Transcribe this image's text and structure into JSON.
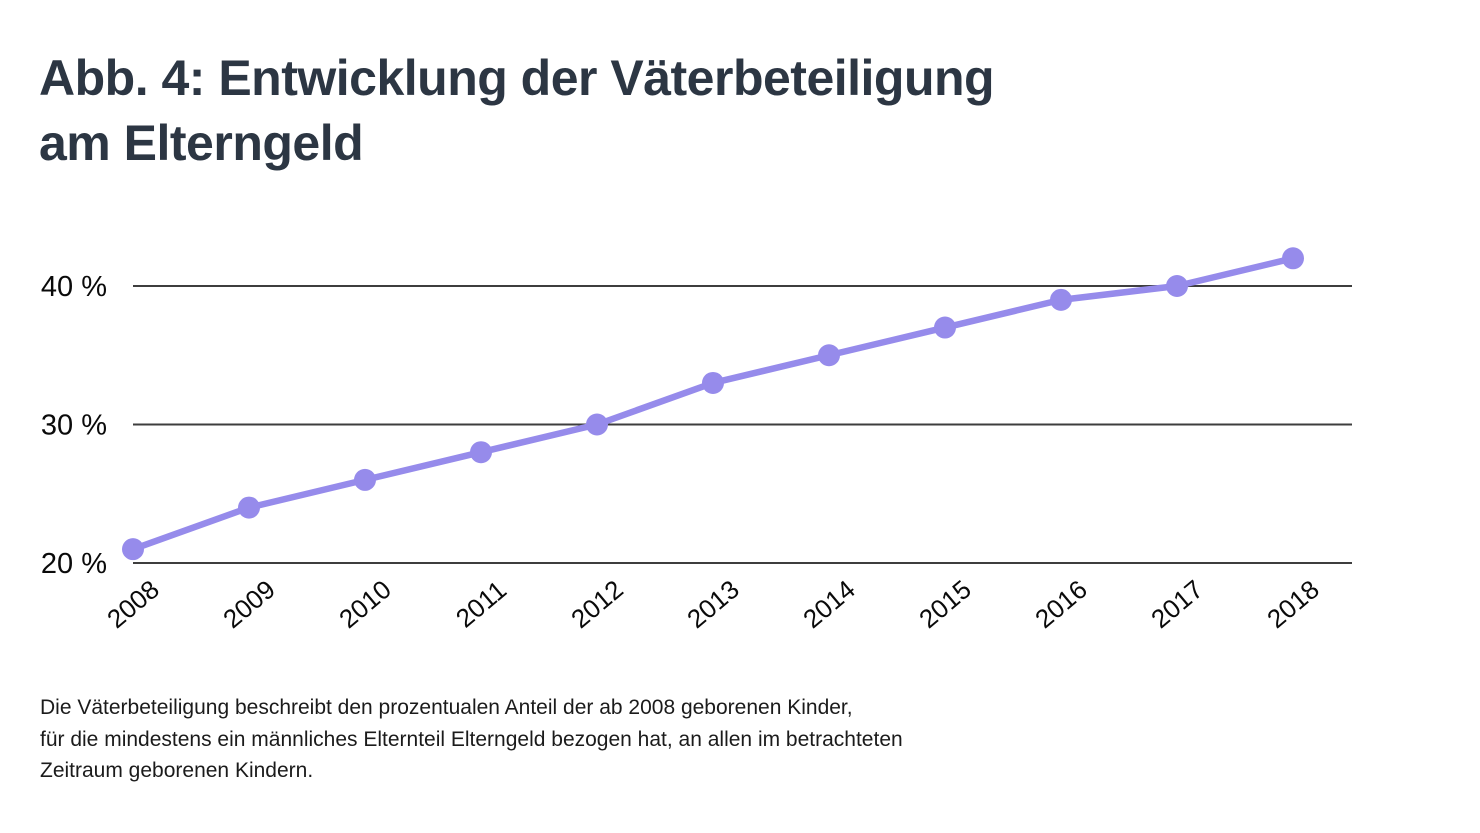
{
  "title": {
    "line1": "Abb. 4: Entwicklung der Väterbeteiligung",
    "line2": "am Elterngeld"
  },
  "caption": {
    "lines": [
      "Die Väterbeteiligung beschreibt den prozentualen Anteil der ab 2008 geborenen Kinder,",
      "für die mindestens ein männliches Elternteil Elterngeld bezogen hat, an allen im betrachteten",
      "Zeitraum geborenen Kindern."
    ]
  },
  "chart_data": {
    "type": "line",
    "title": "Entwicklung der Väterbeteiligung am Elterngeld",
    "categories": [
      "2008",
      "2009",
      "2010",
      "2011",
      "2012",
      "2013",
      "2014",
      "2015",
      "2016",
      "2017",
      "2018"
    ],
    "values": [
      21,
      24,
      26,
      28,
      30,
      33,
      35,
      37,
      39,
      40,
      42
    ],
    "unit": "%",
    "xlabel": "",
    "ylabel": "",
    "ylim": [
      20,
      44
    ],
    "y_ticks": [
      {
        "value": 20,
        "label": "20 %"
      },
      {
        "value": 30,
        "label": "30 %"
      },
      {
        "value": 40,
        "label": "40 %"
      }
    ],
    "grid": true,
    "legend": false,
    "colors": {
      "line": "#968BEB",
      "point": "#968BEB",
      "gridline": "#3e3e3e",
      "tick_text": "#0a0a0a",
      "title_text": "#2c3643",
      "caption_text": "#1b1b1b",
      "background": "#ffffff"
    }
  }
}
